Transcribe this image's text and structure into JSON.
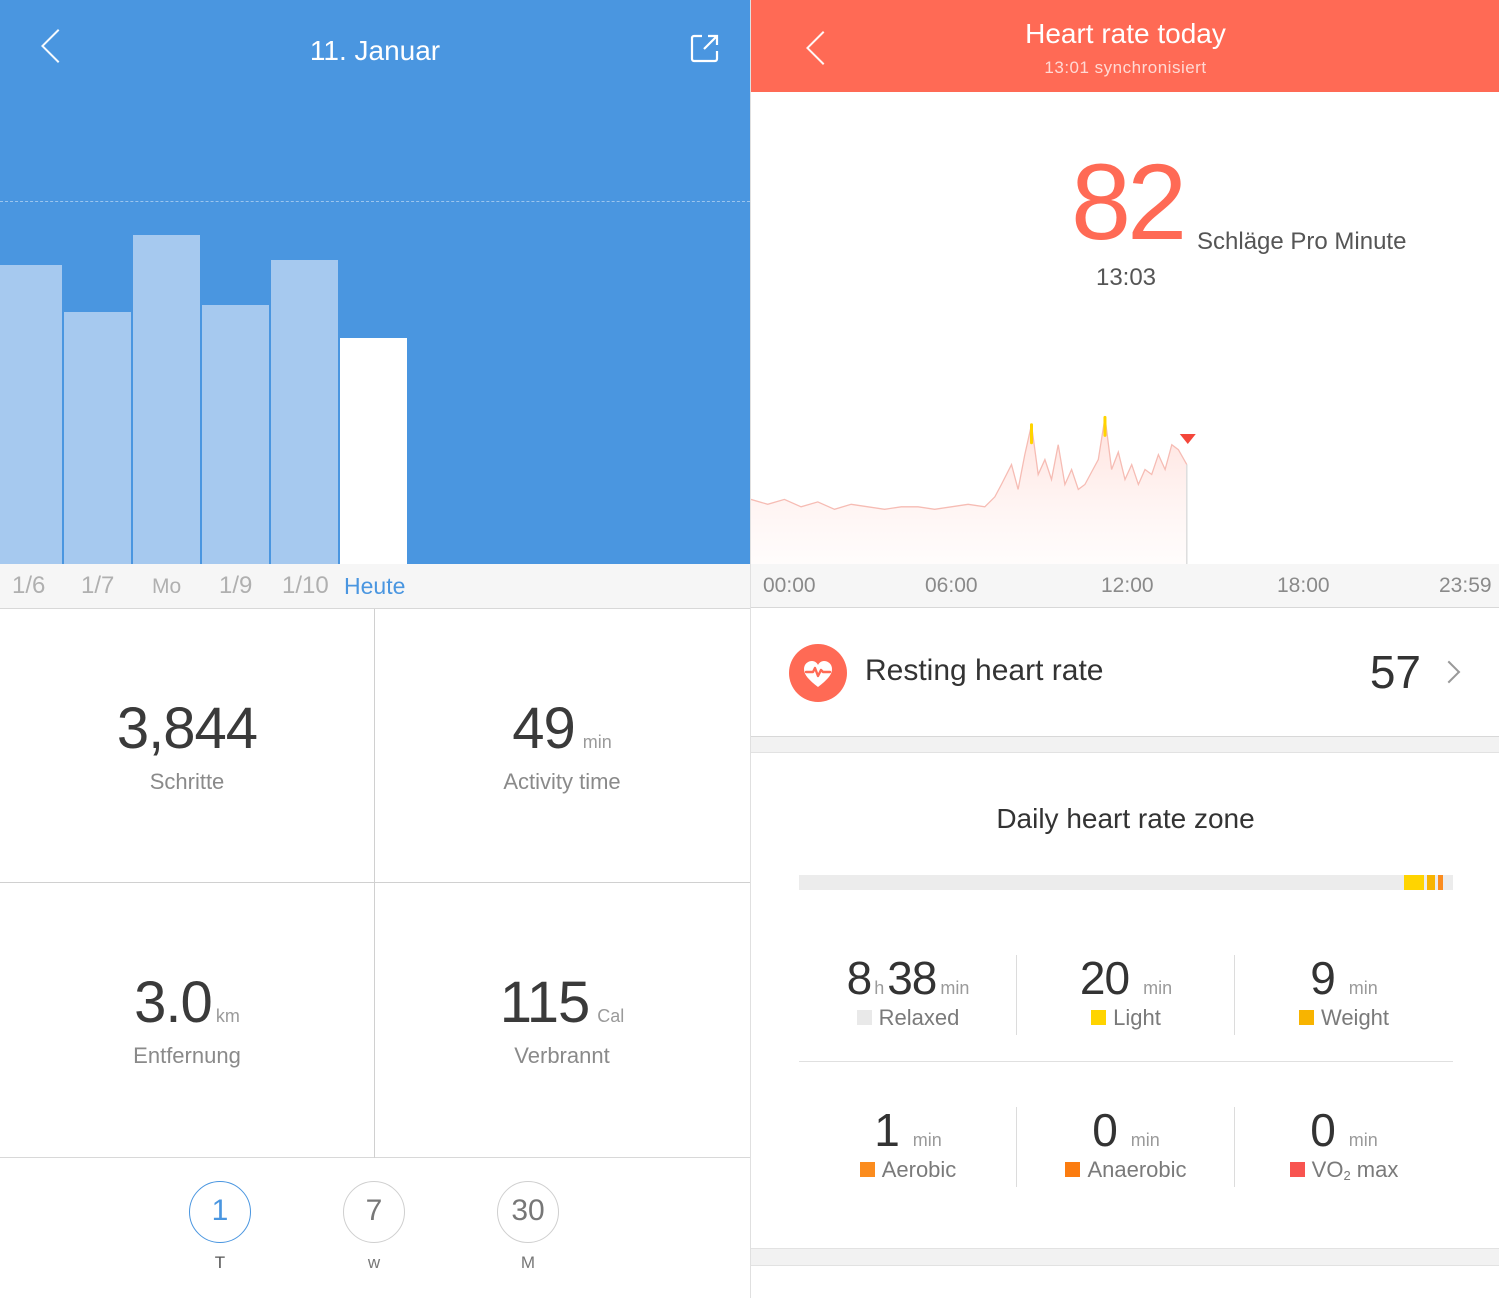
{
  "left": {
    "title": "11. Januar",
    "x_labels": [
      "1/6",
      "1/7",
      "Mo",
      "1/9",
      "1/10",
      "Heute"
    ],
    "stats": {
      "steps": {
        "value": "3,844",
        "label": "Schritte"
      },
      "activity": {
        "value": "49",
        "unit": "min",
        "label": "Activity time"
      },
      "distance": {
        "value": "3.0",
        "unit": "km",
        "label": "Entfernung"
      },
      "calories": {
        "value": "115",
        "unit": "Cal",
        "label": "Verbrannt"
      }
    },
    "ranges": [
      {
        "value": "1",
        "label": "T"
      },
      {
        "value": "7",
        "label": "w"
      },
      {
        "value": "30",
        "label": "M"
      }
    ]
  },
  "chart_data": [
    {
      "type": "bar",
      "categories": [
        "1/6",
        "1/7",
        "Mo",
        "1/9",
        "1/10",
        "Heute"
      ],
      "values": [
        298,
        251,
        328,
        258,
        303,
        225
      ],
      "ylim": [
        0,
        362
      ],
      "goal_line": 362,
      "highlight_category": "Heute"
    },
    {
      "type": "area",
      "x_ticks": [
        "00:00",
        "06:00",
        "12:00",
        "18:00",
        "23:59"
      ],
      "x_hours": [
        0,
        0.5,
        1,
        1.5,
        2,
        2.5,
        3,
        3.5,
        4,
        4.5,
        5,
        5.5,
        6,
        6.5,
        7,
        7.3,
        7.5,
        7.8,
        8,
        8.2,
        8.4,
        8.6,
        8.8,
        9,
        9.2,
        9.4,
        9.6,
        9.8,
        10,
        10.2,
        10.4,
        10.6,
        10.8,
        11,
        11.2,
        11.4,
        11.6,
        11.8,
        12,
        12.2,
        12.4,
        12.6,
        12.8,
        13.05
      ],
      "values": [
        66,
        64,
        66,
        63,
        65,
        62,
        64,
        63,
        62,
        63,
        63,
        62,
        63,
        64,
        63,
        67,
        72,
        80,
        70,
        84,
        96,
        76,
        82,
        74,
        88,
        72,
        78,
        70,
        72,
        77,
        82,
        99,
        78,
        85,
        74,
        80,
        72,
        78,
        76,
        84,
        78,
        88,
        86,
        80
      ],
      "ylim": [
        40,
        110
      ],
      "zone_threshold": 95,
      "current_time": "13:03",
      "current_value": 82
    }
  ],
  "right": {
    "title": "Heart rate today",
    "subtitle": "13:01 synchronisiert",
    "current_value": "82",
    "current_unit": "Schläge Pro Minute",
    "current_time": "13:03",
    "x_labels": [
      "00:00",
      "06:00",
      "12:00",
      "18:00",
      "23:59"
    ],
    "resting": {
      "label": "Resting heart rate",
      "value": "57"
    },
    "zone_title": "Daily heart rate zone",
    "zone_bar": [
      {
        "zone": "Relaxed",
        "fraction": 0.92,
        "color": "#ececec"
      },
      {
        "zone": "Light",
        "fraction": 0.035,
        "color": "#ffd400"
      },
      {
        "zone": "Weight",
        "fraction": 0.017,
        "color": "#f8b400"
      },
      {
        "zone": "Aerobic",
        "fraction": 0.012,
        "color": "#fb8c1e"
      }
    ],
    "zones": [
      {
        "hours": "8",
        "hours_unit": "h",
        "value": "38",
        "unit": "min",
        "label": "Relaxed",
        "color": "#e9e9e9"
      },
      {
        "value": "20",
        "unit": "min",
        "label": "Light",
        "color": "#ffd400"
      },
      {
        "value": "9",
        "unit": "min",
        "label": "Weight",
        "color": "#f8b400"
      },
      {
        "value": "1",
        "unit": "min",
        "label": "Aerobic",
        "color": "#fb8c1e"
      },
      {
        "value": "0",
        "unit": "min",
        "label": "Anaerobic",
        "color": "#fb7c10"
      },
      {
        "value": "0",
        "unit": "min",
        "label": "VO",
        "label_sub": "2",
        "label_suffix": " max",
        "color": "#f85450"
      }
    ]
  },
  "colors": {
    "blue": "#4a96e0",
    "bar": "#a6c9ef",
    "coral": "#ff6a55"
  }
}
